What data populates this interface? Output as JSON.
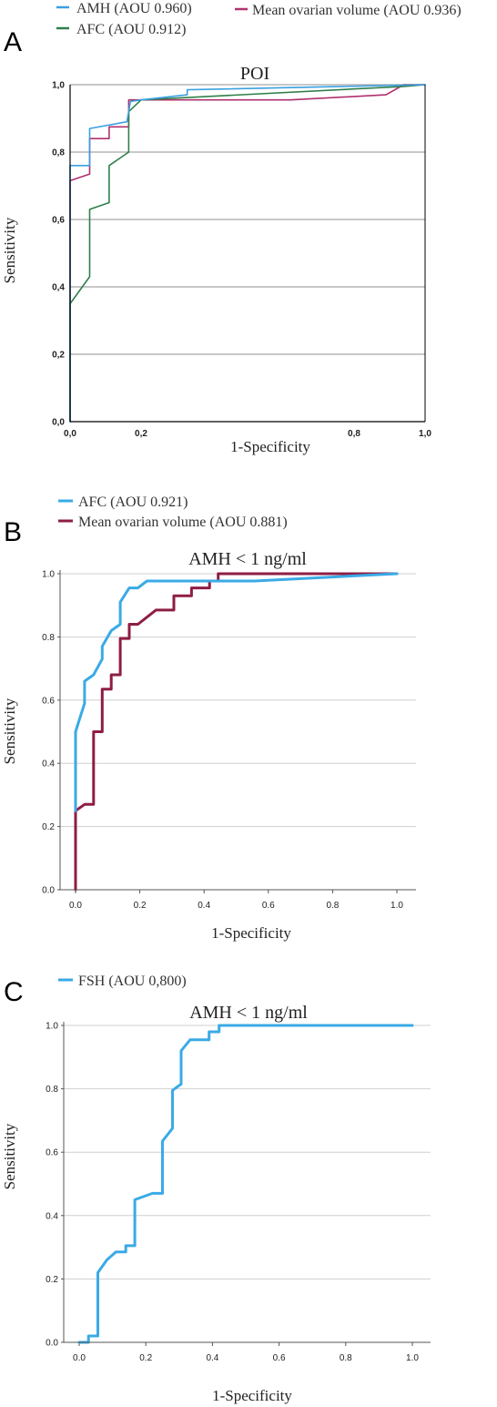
{
  "chart_data": [
    {
      "panel_label": "A",
      "type": "line",
      "title": "POI",
      "xlabel": "1-Specificity",
      "ylabel": "Sensitivity",
      "xlim": [
        0,
        1
      ],
      "ylim": [
        0,
        1
      ],
      "x_ticks": [
        "0,0",
        "0,2",
        "0,8",
        "1,0"
      ],
      "x_tick_values": [
        0,
        0.2,
        0.8,
        1.0
      ],
      "y_ticks": [
        "0,0",
        "0,2",
        "0,4",
        "0,6",
        "0,8",
        "1,0"
      ],
      "y_tick_values": [
        0,
        0.2,
        0.4,
        0.6,
        0.8,
        1.0
      ],
      "grid": "horizontal",
      "legend": "top",
      "series": [
        {
          "name": "AMH (AOU 0.960)",
          "color": "#3aa0e0",
          "x": [
            0,
            0,
            0.055,
            0.055,
            0.16,
            0.17,
            0.2,
            0.33,
            0.33,
            1.0
          ],
          "y": [
            0,
            0.76,
            0.76,
            0.87,
            0.89,
            0.95,
            0.955,
            0.97,
            0.985,
            1.0
          ]
        },
        {
          "name": "AFC (AOU 0.912)",
          "color": "#2e7f4a",
          "x": [
            0,
            0,
            0.055,
            0.055,
            0.11,
            0.11,
            0.165,
            0.165,
            0.2,
            0.94,
            1.0
          ],
          "y": [
            0,
            0.35,
            0.43,
            0.63,
            0.65,
            0.76,
            0.8,
            0.92,
            0.955,
            0.995,
            1.0
          ]
        },
        {
          "name": "Mean ovarian volume (AOU 0.936)",
          "color": "#b0306e",
          "x": [
            0,
            0,
            0.055,
            0.055,
            0.11,
            0.11,
            0.165,
            0.165,
            0.22,
            0.62,
            0.89,
            0.94,
            1.0
          ],
          "y": [
            0,
            0.715,
            0.735,
            0.84,
            0.84,
            0.875,
            0.875,
            0.955,
            0.955,
            0.955,
            0.97,
            1.0,
            1.0
          ]
        }
      ]
    },
    {
      "panel_label": "B",
      "type": "line",
      "title": "AMH < 1 ng/ml",
      "xlabel": "1-Specificity",
      "ylabel": "Sensitivity",
      "xlim": [
        0,
        1
      ],
      "ylim": [
        0,
        1
      ],
      "x_ticks": [
        "0.0",
        "0.2",
        "0.4",
        "0.6",
        "0.8",
        "1.0"
      ],
      "x_tick_values": [
        0,
        0.2,
        0.4,
        0.6,
        0.8,
        1.0
      ],
      "y_ticks": [
        "0.0",
        "0.2",
        "0.4",
        "0.6",
        "0.8",
        "1.0"
      ],
      "y_tick_values": [
        0,
        0.2,
        0.4,
        0.6,
        0.8,
        1.0
      ],
      "grid": "horizontal",
      "legend": "top",
      "series": [
        {
          "name": "AFC (AOU 0.921)",
          "color": "#3aaae6",
          "x": [
            0,
            0,
            0.028,
            0.028,
            0.056,
            0.083,
            0.083,
            0.111,
            0.139,
            0.139,
            0.167,
            0.194,
            0.222,
            0.556,
            1.0
          ],
          "y": [
            0.25,
            0.5,
            0.59,
            0.66,
            0.68,
            0.73,
            0.77,
            0.82,
            0.84,
            0.91,
            0.955,
            0.955,
            0.977,
            0.977,
            1.0
          ]
        },
        {
          "name": "Mean ovarian volume (AOU 0.881)",
          "color": "#8e1d45",
          "x": [
            0,
            0,
            0.028,
            0.056,
            0.056,
            0.083,
            0.083,
            0.111,
            0.111,
            0.139,
            0.139,
            0.167,
            0.167,
            0.194,
            0.25,
            0.306,
            0.306,
            0.361,
            0.361,
            0.417,
            0.417,
            0.444,
            0.444,
            1.0
          ],
          "y": [
            0,
            0.25,
            0.27,
            0.27,
            0.5,
            0.5,
            0.635,
            0.635,
            0.68,
            0.68,
            0.795,
            0.795,
            0.84,
            0.84,
            0.885,
            0.885,
            0.93,
            0.93,
            0.955,
            0.955,
            0.977,
            0.977,
            1.0,
            1.0
          ]
        }
      ]
    },
    {
      "panel_label": "C",
      "type": "line",
      "title": "AMH < 1 ng/ml",
      "xlabel": "1-Specificity",
      "ylabel": "Sensitivity",
      "xlim": [
        0,
        1
      ],
      "ylim": [
        0,
        1
      ],
      "x_ticks": [
        "0.0",
        "0.2",
        "0.4",
        "0.6",
        "0.8",
        "1.0"
      ],
      "x_tick_values": [
        0,
        0.2,
        0.4,
        0.6,
        0.8,
        1.0
      ],
      "y_ticks": [
        "0.0",
        "0.2",
        "0.4",
        "0.6",
        "0.8",
        "1.0"
      ],
      "y_tick_values": [
        0,
        0.2,
        0.4,
        0.6,
        0.8,
        1.0
      ],
      "grid": "horizontal",
      "legend": "top",
      "series": [
        {
          "name": "FSH (AOU 0,800)",
          "color": "#3aaae6",
          "x": [
            0,
            0.028,
            0.028,
            0.056,
            0.056,
            0.083,
            0.11,
            0.14,
            0.14,
            0.167,
            0.167,
            0.22,
            0.25,
            0.25,
            0.28,
            0.28,
            0.306,
            0.306,
            0.333,
            0.39,
            0.39,
            0.42,
            0.42,
            1.0
          ],
          "y": [
            0,
            0,
            0.02,
            0.02,
            0.22,
            0.26,
            0.285,
            0.285,
            0.305,
            0.305,
            0.45,
            0.47,
            0.47,
            0.635,
            0.675,
            0.795,
            0.815,
            0.92,
            0.955,
            0.955,
            0.98,
            0.98,
            1.0,
            1.0
          ]
        }
      ]
    }
  ]
}
